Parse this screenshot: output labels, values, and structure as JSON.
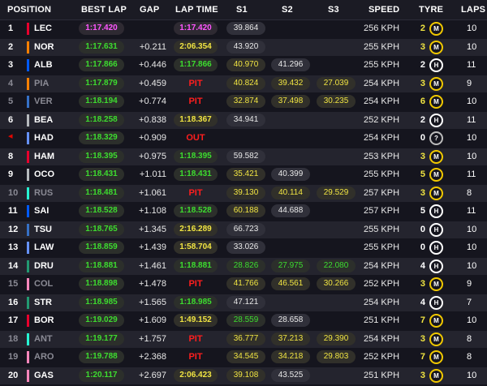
{
  "headers": {
    "position": "POSITION",
    "best_lap": "BEST LAP",
    "gap": "GAP",
    "lap_time": "LAP TIME",
    "s1": "S1",
    "s2": "S2",
    "s3": "S3",
    "speed": "SPEED",
    "tyre": "TYRE",
    "laps": "LAPS"
  },
  "colors": {
    "background": "#15151e",
    "purple_fastest": "#ff55ff",
    "green_personal_best": "#3ddc2f",
    "yellow": "#f0e442",
    "pit_red": "#ff1e1e",
    "medium_tyre": "#f0c800",
    "hard_tyre": "#ffffff"
  },
  "rows": [
    {
      "pos": "1",
      "drv": "LEC",
      "team_color": "#e8002d",
      "best": "1:17.420",
      "best_style": "fast",
      "gap": "",
      "lap": "1:17.420",
      "lap_style": "fast",
      "s1": "39.864",
      "s1_style": "",
      "s2": "",
      "s2_style": "",
      "s3": "",
      "s3_style": "",
      "speed": "256 KPH",
      "tyre_age": "2",
      "age_style": "y",
      "tyre": "M",
      "laps": "10",
      "dim": false,
      "arrow": false
    },
    {
      "pos": "2",
      "drv": "NOR",
      "team_color": "#ff8000",
      "best": "1:17.631",
      "best_style": "",
      "gap": "+0.211",
      "lap": "2:06.354",
      "lap_style": "yellow",
      "s1": "43.920",
      "s1_style": "",
      "s2": "",
      "s2_style": "",
      "s3": "",
      "s3_style": "",
      "speed": "255 KPH",
      "tyre_age": "3",
      "age_style": "y",
      "tyre": "M",
      "laps": "10",
      "dim": false,
      "arrow": false
    },
    {
      "pos": "3",
      "drv": "ALB",
      "team_color": "#005aff",
      "best": "1:17.866",
      "best_style": "",
      "gap": "+0.446",
      "lap": "1:17.866",
      "lap_style": "green",
      "s1": "40.970",
      "s1_style": "yellow",
      "s2": "41.296",
      "s2_style": "",
      "s3": "",
      "s3_style": "",
      "speed": "255 KPH",
      "tyre_age": "2",
      "age_style": "w",
      "tyre": "H",
      "laps": "11",
      "dim": false,
      "arrow": false
    },
    {
      "pos": "4",
      "drv": "PIA",
      "team_color": "#ff8000",
      "best": "1:17.879",
      "best_style": "",
      "gap": "+0.459",
      "lap": "PIT",
      "lap_style": "pit",
      "s1": "40.824",
      "s1_style": "yellow",
      "s2": "39.432",
      "s2_style": "yellow",
      "s3": "27.039",
      "s3_style": "yellow",
      "speed": "254 KPH",
      "tyre_age": "3",
      "age_style": "y",
      "tyre": "M",
      "laps": "9",
      "dim": true,
      "arrow": false
    },
    {
      "pos": "5",
      "drv": "VER",
      "team_color": "#3671c6",
      "best": "1:18.194",
      "best_style": "",
      "gap": "+0.774",
      "lap": "PIT",
      "lap_style": "pit",
      "s1": "32.874",
      "s1_style": "yellow",
      "s2": "37.498",
      "s2_style": "yellow",
      "s3": "30.235",
      "s3_style": "yellow",
      "speed": "254 KPH",
      "tyre_age": "6",
      "age_style": "y",
      "tyre": "M",
      "laps": "10",
      "dim": true,
      "arrow": false
    },
    {
      "pos": "6",
      "drv": "BEA",
      "team_color": "#b6babd",
      "best": "1:18.258",
      "best_style": "",
      "gap": "+0.838",
      "lap": "1:18.367",
      "lap_style": "yellow",
      "s1": "34.941",
      "s1_style": "",
      "s2": "",
      "s2_style": "",
      "s3": "",
      "s3_style": "",
      "speed": "252 KPH",
      "tyre_age": "2",
      "age_style": "w",
      "tyre": "H",
      "laps": "11",
      "dim": false,
      "arrow": false
    },
    {
      "pos": "",
      "drv": "HAD",
      "team_color": "#6692ff",
      "best": "1:18.329",
      "best_style": "",
      "gap": "+0.909",
      "lap": "OUT",
      "lap_style": "out",
      "s1": "",
      "s1_style": "",
      "s2": "",
      "s2_style": "",
      "s3": "",
      "s3_style": "",
      "speed": "254 KPH",
      "tyre_age": "0",
      "age_style": "w",
      "tyre": "?",
      "laps": "10",
      "dim": false,
      "arrow": true
    },
    {
      "pos": "8",
      "drv": "HAM",
      "team_color": "#e8002d",
      "best": "1:18.395",
      "best_style": "",
      "gap": "+0.975",
      "lap": "1:18.395",
      "lap_style": "green",
      "s1": "59.582",
      "s1_style": "",
      "s2": "",
      "s2_style": "",
      "s3": "",
      "s3_style": "",
      "speed": "253 KPH",
      "tyre_age": "3",
      "age_style": "y",
      "tyre": "M",
      "laps": "10",
      "dim": false,
      "arrow": false
    },
    {
      "pos": "9",
      "drv": "OCO",
      "team_color": "#b6babd",
      "best": "1:18.431",
      "best_style": "",
      "gap": "+1.011",
      "lap": "1:18.431",
      "lap_style": "green",
      "s1": "35.421",
      "s1_style": "yellow",
      "s2": "40.399",
      "s2_style": "",
      "s3": "",
      "s3_style": "",
      "speed": "255 KPH",
      "tyre_age": "5",
      "age_style": "y",
      "tyre": "M",
      "laps": "11",
      "dim": false,
      "arrow": false
    },
    {
      "pos": "10",
      "drv": "RUS",
      "team_color": "#27f4d2",
      "best": "1:18.481",
      "best_style": "",
      "gap": "+1.061",
      "lap": "PIT",
      "lap_style": "pit",
      "s1": "39.130",
      "s1_style": "yellow",
      "s2": "40.114",
      "s2_style": "yellow",
      "s3": "29.529",
      "s3_style": "yellow",
      "speed": "257 KPH",
      "tyre_age": "3",
      "age_style": "y",
      "tyre": "M",
      "laps": "8",
      "dim": true,
      "arrow": false
    },
    {
      "pos": "11",
      "drv": "SAI",
      "team_color": "#005aff",
      "best": "1:18.528",
      "best_style": "",
      "gap": "+1.108",
      "lap": "1:18.528",
      "lap_style": "green",
      "s1": "60.188",
      "s1_style": "yellow",
      "s2": "44.688",
      "s2_style": "",
      "s3": "",
      "s3_style": "",
      "speed": "257 KPH",
      "tyre_age": "5",
      "age_style": "w",
      "tyre": "H",
      "laps": "11",
      "dim": false,
      "arrow": false
    },
    {
      "pos": "12",
      "drv": "TSU",
      "team_color": "#3671c6",
      "best": "1:18.765",
      "best_style": "",
      "gap": "+1.345",
      "lap": "2:16.289",
      "lap_style": "yellow",
      "s1": "66.723",
      "s1_style": "",
      "s2": "",
      "s2_style": "",
      "s3": "",
      "s3_style": "",
      "speed": "255 KPH",
      "tyre_age": "0",
      "age_style": "w",
      "tyre": "H",
      "laps": "10",
      "dim": false,
      "arrow": false
    },
    {
      "pos": "13",
      "drv": "LAW",
      "team_color": "#6692ff",
      "best": "1:18.859",
      "best_style": "",
      "gap": "+1.439",
      "lap": "1:58.704",
      "lap_style": "yellow",
      "s1": "33.026",
      "s1_style": "",
      "s2": "",
      "s2_style": "",
      "s3": "",
      "s3_style": "",
      "speed": "255 KPH",
      "tyre_age": "0",
      "age_style": "w",
      "tyre": "H",
      "laps": "10",
      "dim": false,
      "arrow": false
    },
    {
      "pos": "14",
      "drv": "DRU",
      "team_color": "#229971",
      "best": "1:18.881",
      "best_style": "",
      "gap": "+1.461",
      "lap": "1:18.881",
      "lap_style": "green",
      "s1": "28.826",
      "s1_style": "green",
      "s2": "27.975",
      "s2_style": "green",
      "s3": "22.080",
      "s3_style": "green",
      "speed": "254 KPH",
      "tyre_age": "4",
      "age_style": "w",
      "tyre": "H",
      "laps": "10",
      "dim": false,
      "arrow": false
    },
    {
      "pos": "15",
      "drv": "COL",
      "team_color": "#ff87bc",
      "best": "1:18.898",
      "best_style": "",
      "gap": "+1.478",
      "lap": "PIT",
      "lap_style": "pit",
      "s1": "41.766",
      "s1_style": "yellow",
      "s2": "46.561",
      "s2_style": "yellow",
      "s3": "30.266",
      "s3_style": "yellow",
      "speed": "252 KPH",
      "tyre_age": "3",
      "age_style": "y",
      "tyre": "M",
      "laps": "9",
      "dim": true,
      "arrow": false
    },
    {
      "pos": "16",
      "drv": "STR",
      "team_color": "#229971",
      "best": "1:18.985",
      "best_style": "",
      "gap": "+1.565",
      "lap": "1:18.985",
      "lap_style": "green",
      "s1": "47.121",
      "s1_style": "",
      "s2": "",
      "s2_style": "",
      "s3": "",
      "s3_style": "",
      "speed": "254 KPH",
      "tyre_age": "4",
      "age_style": "w",
      "tyre": "H",
      "laps": "7",
      "dim": false,
      "arrow": false
    },
    {
      "pos": "17",
      "drv": "BOR",
      "team_color": "#e8002d",
      "best": "1:19.029",
      "best_style": "",
      "gap": "+1.609",
      "lap": "1:49.152",
      "lap_style": "yellow",
      "s1": "28.559",
      "s1_style": "green",
      "s2": "28.658",
      "s2_style": "",
      "s3": "",
      "s3_style": "",
      "speed": "251 KPH",
      "tyre_age": "7",
      "age_style": "y",
      "tyre": "M",
      "laps": "10",
      "dim": false,
      "arrow": false
    },
    {
      "pos": "18",
      "drv": "ANT",
      "team_color": "#27f4d2",
      "best": "1:19.177",
      "best_style": "",
      "gap": "+1.757",
      "lap": "PIT",
      "lap_style": "pit",
      "s1": "36.777",
      "s1_style": "yellow",
      "s2": "37.213",
      "s2_style": "yellow",
      "s3": "29.390",
      "s3_style": "yellow",
      "speed": "254 KPH",
      "tyre_age": "3",
      "age_style": "y",
      "tyre": "M",
      "laps": "8",
      "dim": true,
      "arrow": false
    },
    {
      "pos": "19",
      "drv": "ARO",
      "team_color": "#ff87bc",
      "best": "1:19.788",
      "best_style": "",
      "gap": "+2.368",
      "lap": "PIT",
      "lap_style": "pit",
      "s1": "34.545",
      "s1_style": "yellow",
      "s2": "34.218",
      "s2_style": "yellow",
      "s3": "29.803",
      "s3_style": "yellow",
      "speed": "252 KPH",
      "tyre_age": "7",
      "age_style": "y",
      "tyre": "M",
      "laps": "8",
      "dim": true,
      "arrow": false
    },
    {
      "pos": "20",
      "drv": "GAS",
      "team_color": "#ff87bc",
      "best": "1:20.117",
      "best_style": "",
      "gap": "+2.697",
      "lap": "2:06.423",
      "lap_style": "yellow",
      "s1": "39.108",
      "s1_style": "yellow",
      "s2": "43.525",
      "s2_style": "",
      "s3": "",
      "s3_style": "",
      "speed": "251 KPH",
      "tyre_age": "3",
      "age_style": "y",
      "tyre": "M",
      "laps": "10",
      "dim": false,
      "arrow": false
    }
  ]
}
